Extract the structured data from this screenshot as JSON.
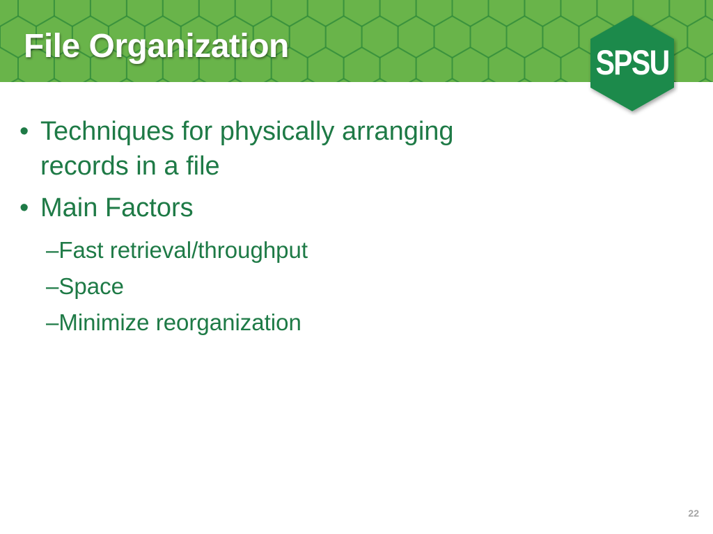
{
  "slide": {
    "title": "File Organization",
    "logo_text": "SPSU",
    "bullets": [
      {
        "marker": "•",
        "text_lines": [
          "Techniques for physically arranging",
          "records in a file"
        ]
      },
      {
        "marker": "•",
        "text_lines": [
          "Main Factors"
        ]
      }
    ],
    "sub_bullets": [
      {
        "marker": "–",
        "text": "Fast retrieval/throughput"
      },
      {
        "marker": "–",
        "text": "Space"
      },
      {
        "marker": "–",
        "text": "Minimize reorganization"
      }
    ],
    "page_number": "22"
  },
  "colors": {
    "banner_green": "#69b44a",
    "hex_outline": "#2f8a3b",
    "logo_green": "#1e8a4c",
    "body_text": "#1e7a46",
    "page_number": "#a5a5a5"
  }
}
